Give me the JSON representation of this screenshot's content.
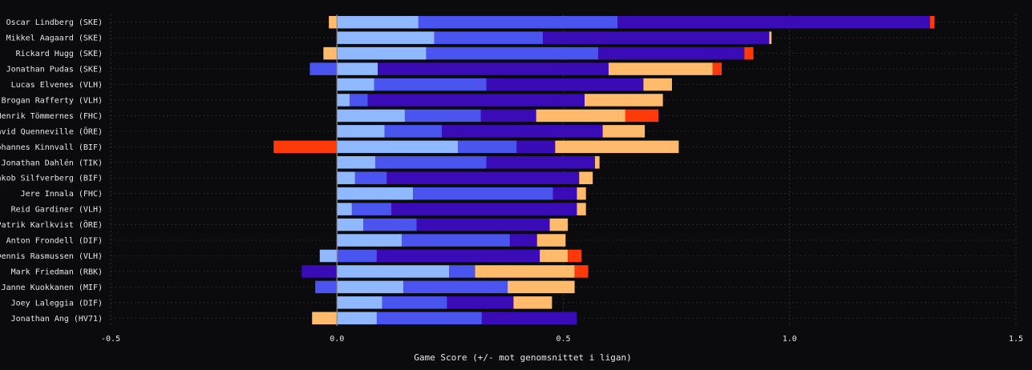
{
  "chart_data": {
    "type": "bar",
    "orientation": "horizontal",
    "stacked": true,
    "xlabel": "Game Score (+/- mot genomsnittet i ligan)",
    "ylabel": "",
    "xlim": [
      -0.5,
      1.5
    ],
    "xticks": [
      -0.5,
      0.0,
      0.5,
      1.0,
      1.5
    ],
    "xtick_labels": [
      "-0.5",
      "0.0",
      "0.5",
      "1.0",
      "1.5"
    ],
    "grid": true,
    "series_colors": [
      "#8fb8ff",
      "#4a55f0",
      "#3a0cb8",
      "#ffba6b",
      "#ff3a0a"
    ],
    "categories": [
      "Oscar Lindberg (SKE)",
      "Mikkel Aagaard (SKE)",
      "Rickard Hugg (SKE)",
      "Jonathan Pudas (SKE)",
      "Lucas Elvenes (VLH)",
      "Brogan Rafferty (VLH)",
      "Henrik Tömmernes (FHC)",
      "David Quenneville (ÖRE)",
      "Johannes Kinnvall (BIF)",
      "Jonathan Dahlén (TIK)",
      "Jakob Silfverberg (BIF)",
      "Jere Innala (FHC)",
      "Reid Gardiner (VLH)",
      "Patrik Karlkvist (ÖRE)",
      "Anton Frondell (DIF)",
      "Dennis Rasmussen (VLH)",
      "Mark Friedman (RBK)",
      "Janne Kuokkanen (MIF)",
      "Joey Laleggia (DIF)",
      "Jonathan Ang (HV71)"
    ],
    "segments": [
      [
        [
          -0.018,
          0
        ],
        [
          0,
          0.18
        ],
        [
          0.18,
          0.62
        ],
        [
          0.62,
          1.31
        ],
        [
          1.31,
          1.32
        ]
      ],
      [
        [
          0,
          0.215
        ],
        [
          0.215,
          0.455
        ],
        [
          0.455,
          0.955
        ],
        [
          0.955,
          0.96
        ]
      ],
      [
        [
          -0.03,
          0
        ],
        [
          0,
          0.197
        ],
        [
          0.197,
          0.577
        ],
        [
          0.577,
          0.9
        ],
        [
          0.9,
          0.92
        ]
      ],
      [
        [
          -0.06,
          0
        ],
        [
          0,
          0.09
        ],
        [
          0.09,
          0.6
        ],
        [
          0.6,
          0.83
        ],
        [
          0.83,
          0.85
        ]
      ],
      [
        [
          0,
          0.082
        ],
        [
          0.082,
          0.33
        ],
        [
          0.33,
          0.677
        ],
        [
          0.677,
          0.74
        ]
      ],
      [
        [
          0,
          0.028
        ],
        [
          0.028,
          0.068
        ],
        [
          0.068,
          0.547
        ],
        [
          0.547,
          0.72
        ]
      ],
      [
        [
          0,
          0.15
        ],
        [
          0.15,
          0.318
        ],
        [
          0.318,
          0.44
        ],
        [
          0.44,
          0.637
        ],
        [
          0.637,
          0.71
        ]
      ],
      [
        [
          0,
          0.105
        ],
        [
          0.105,
          0.232
        ],
        [
          0.232,
          0.587
        ],
        [
          0.587,
          0.68
        ]
      ],
      [
        [
          -0.14,
          0
        ],
        [
          0,
          0.267
        ],
        [
          0.267,
          0.397
        ],
        [
          0.397,
          0.482
        ],
        [
          0.482,
          0.755
        ]
      ],
      [
        [
          0,
          0.085
        ],
        [
          0.085,
          0.33
        ],
        [
          0.33,
          0.57
        ],
        [
          0.57,
          0.58
        ]
      ],
      [
        [
          0,
          0.04
        ],
        [
          0.04,
          0.11
        ],
        [
          0.11,
          0.535
        ],
        [
          0.535,
          0.565
        ]
      ],
      [
        [
          0,
          0.168
        ],
        [
          0.168,
          0.477
        ],
        [
          0.477,
          0.53
        ],
        [
          0.53,
          0.55
        ]
      ],
      [
        [
          0,
          0.033
        ],
        [
          0.033,
          0.12
        ],
        [
          0.12,
          0.53
        ],
        [
          0.53,
          0.55
        ]
      ],
      [
        [
          0,
          0.058
        ],
        [
          0.058,
          0.176
        ],
        [
          0.176,
          0.47
        ],
        [
          0.47,
          0.51
        ]
      ],
      [
        [
          0,
          0.143
        ],
        [
          0.143,
          0.382
        ],
        [
          0.382,
          0.442
        ],
        [
          0.442,
          0.505
        ]
      ],
      [
        [
          -0.038,
          0
        ],
        [
          0,
          0.088
        ],
        [
          0.088,
          0.448
        ],
        [
          0.448,
          0.51
        ],
        [
          0.51,
          0.54
        ]
      ],
      [
        [
          -0.078,
          0
        ],
        [
          0,
          0.248
        ],
        [
          0.248,
          0.305
        ],
        [
          0.305,
          0.525
        ],
        [
          0.525,
          0.555
        ]
      ],
      [
        [
          -0.048,
          0
        ],
        [
          0,
          0.147
        ],
        [
          0.147,
          0.377
        ],
        [
          0.377,
          0.525
        ]
      ],
      [
        [
          0,
          0.1
        ],
        [
          0.1,
          0.243
        ],
        [
          0.243,
          0.39
        ],
        [
          0.39,
          0.475
        ]
      ],
      [
        [
          -0.055,
          0
        ],
        [
          0,
          0.088
        ],
        [
          0.088,
          0.32
        ],
        [
          0.32,
          0.53
        ]
      ]
    ],
    "segment_series": [
      [
        3,
        0,
        1,
        2,
        4
      ],
      [
        0,
        1,
        2,
        3
      ],
      [
        3,
        0,
        1,
        2,
        4
      ],
      [
        1,
        0,
        2,
        3,
        4
      ],
      [
        0,
        1,
        2,
        3
      ],
      [
        0,
        1,
        2,
        3
      ],
      [
        0,
        1,
        2,
        3,
        4
      ],
      [
        0,
        1,
        2,
        3
      ],
      [
        4,
        0,
        1,
        2,
        3
      ],
      [
        0,
        1,
        2,
        3
      ],
      [
        0,
        1,
        2,
        3
      ],
      [
        0,
        1,
        2,
        3
      ],
      [
        0,
        1,
        2,
        3
      ],
      [
        0,
        1,
        2,
        3
      ],
      [
        0,
        1,
        2,
        3
      ],
      [
        0,
        1,
        2,
        3,
        4
      ],
      [
        2,
        0,
        1,
        3,
        4
      ],
      [
        1,
        0,
        1,
        3
      ],
      [
        0,
        1,
        2,
        3
      ],
      [
        3,
        0,
        1,
        2
      ]
    ]
  }
}
